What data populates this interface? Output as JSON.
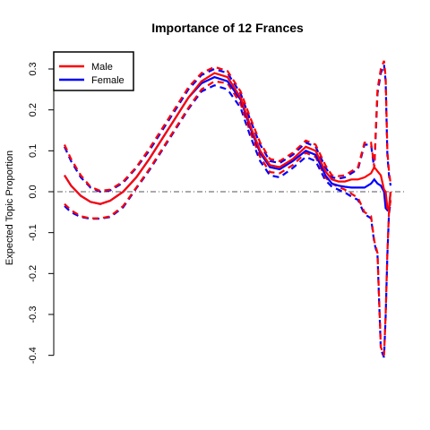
{
  "chart_data": {
    "type": "line",
    "title": "Importance of 12 Frances",
    "xlabel": "",
    "ylabel": "Expected Topic Proportion",
    "ylim": [
      -0.4,
      0.33
    ],
    "xlim": [
      0,
      100
    ],
    "yticks": [
      "-0.4",
      "-0.3",
      "-0.2",
      "-0.1",
      "0.0",
      "0.1",
      "0.2",
      "0.3"
    ],
    "reference_line": 0,
    "legend_position": "top-left",
    "series": [
      {
        "name": "Male",
        "color": "#ff0000",
        "x": [
          0,
          2,
          5,
          8,
          11,
          14,
          18,
          22,
          26,
          30,
          34,
          38,
          42,
          46,
          50,
          54,
          57,
          60,
          63,
          66,
          70,
          74,
          77,
          80,
          82,
          84,
          86,
          88,
          90,
          92,
          94,
          95,
          96,
          97,
          98,
          98.5,
          99,
          99.5,
          100
        ],
        "mean": [
          0.04,
          0.015,
          -0.01,
          -0.025,
          -0.03,
          -0.022,
          0.0,
          0.035,
          0.08,
          0.13,
          0.18,
          0.23,
          0.27,
          0.29,
          0.28,
          0.23,
          0.16,
          0.1,
          0.065,
          0.06,
          0.08,
          0.11,
          0.1,
          0.05,
          0.03,
          0.025,
          0.025,
          0.03,
          0.03,
          0.035,
          0.045,
          0.06,
          0.05,
          0.04,
          0.005,
          0.0,
          -0.04,
          -0.045,
          0.0
        ],
        "upper": [
          0.115,
          0.08,
          0.04,
          0.012,
          0.002,
          0.005,
          0.025,
          0.06,
          0.105,
          0.155,
          0.205,
          0.255,
          0.29,
          0.305,
          0.295,
          0.245,
          0.18,
          0.12,
          0.08,
          0.075,
          0.095,
          0.125,
          0.115,
          0.065,
          0.04,
          0.038,
          0.04,
          0.05,
          0.06,
          0.12,
          0.12,
          0.06,
          0.25,
          0.3,
          0.32,
          0.28,
          0.1,
          0.05,
          0.02
        ],
        "lower": [
          -0.03,
          -0.045,
          -0.06,
          -0.065,
          -0.065,
          -0.06,
          -0.035,
          0.01,
          0.055,
          0.105,
          0.155,
          0.205,
          0.25,
          0.27,
          0.265,
          0.215,
          0.145,
          0.085,
          0.048,
          0.045,
          0.065,
          0.095,
          0.085,
          0.035,
          0.02,
          0.012,
          0.005,
          -0.005,
          -0.015,
          -0.05,
          -0.06,
          -0.12,
          -0.15,
          -0.38,
          -0.4,
          -0.3,
          -0.15,
          -0.05,
          -0.02
        ]
      },
      {
        "name": "Female",
        "color": "#0000ff",
        "x": [
          0,
          2,
          5,
          8,
          11,
          14,
          18,
          22,
          26,
          30,
          34,
          38,
          42,
          46,
          50,
          54,
          57,
          60,
          63,
          66,
          70,
          74,
          77,
          80,
          82,
          84,
          86,
          88,
          90,
          92,
          94,
          95,
          96,
          97,
          98,
          98.5,
          99,
          99.5,
          100
        ],
        "mean": [
          0.04,
          0.015,
          -0.01,
          -0.025,
          -0.03,
          -0.022,
          0.0,
          0.035,
          0.08,
          0.13,
          0.18,
          0.23,
          0.265,
          0.28,
          0.27,
          0.225,
          0.155,
          0.095,
          0.06,
          0.055,
          0.075,
          0.1,
          0.09,
          0.04,
          0.02,
          0.015,
          0.012,
          0.01,
          0.01,
          0.01,
          0.02,
          0.03,
          0.02,
          0.015,
          0.0,
          -0.04,
          -0.045,
          -0.04,
          0.0
        ],
        "upper": [
          0.11,
          0.075,
          0.035,
          0.01,
          0.0,
          0.003,
          0.022,
          0.058,
          0.1,
          0.15,
          0.2,
          0.25,
          0.285,
          0.3,
          0.29,
          0.24,
          0.175,
          0.115,
          0.075,
          0.07,
          0.09,
          0.12,
          0.11,
          0.06,
          0.035,
          0.032,
          0.035,
          0.045,
          0.055,
          0.115,
          0.115,
          0.055,
          0.24,
          0.29,
          0.31,
          0.27,
          0.09,
          0.04,
          0.015
        ],
        "lower": [
          -0.035,
          -0.05,
          -0.062,
          -0.066,
          -0.066,
          -0.062,
          -0.038,
          0.008,
          0.052,
          0.102,
          0.152,
          0.202,
          0.245,
          0.26,
          0.25,
          0.205,
          0.135,
          0.075,
          0.04,
          0.035,
          0.058,
          0.085,
          0.075,
          0.028,
          0.012,
          0.005,
          -0.002,
          -0.012,
          -0.02,
          -0.055,
          -0.065,
          -0.125,
          -0.155,
          -0.385,
          -0.405,
          -0.305,
          -0.155,
          -0.055,
          -0.025
        ]
      }
    ]
  }
}
